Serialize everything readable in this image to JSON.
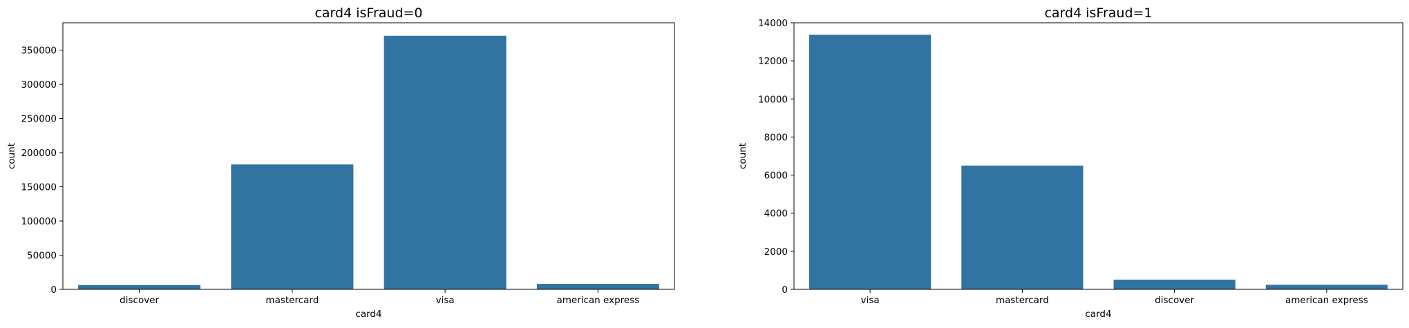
{
  "colors": {
    "bar": "#3274a1",
    "axis": "#000000",
    "background": "#ffffff"
  },
  "chart_data": [
    {
      "type": "bar",
      "title": "card4 isFraud=0",
      "xlabel": "card4",
      "ylabel": "count",
      "categories": [
        "discover",
        "mastercard",
        "visa",
        "american express"
      ],
      "values": [
        6300,
        182700,
        371000,
        8000
      ],
      "ylim": [
        0,
        390000
      ],
      "yticks": [
        0,
        50000,
        100000,
        150000,
        200000,
        250000,
        300000,
        350000
      ],
      "grid": false,
      "legend": "none"
    },
    {
      "type": "bar",
      "title": "card4 isFraud=1",
      "xlabel": "card4",
      "ylabel": "count",
      "categories": [
        "visa",
        "mastercard",
        "discover",
        "american express"
      ],
      "values": [
        13370,
        6500,
        510,
        240
      ],
      "ylim": [
        0,
        14000
      ],
      "yticks": [
        0,
        2000,
        4000,
        6000,
        8000,
        10000,
        12000,
        14000
      ],
      "grid": false,
      "legend": "none"
    }
  ]
}
